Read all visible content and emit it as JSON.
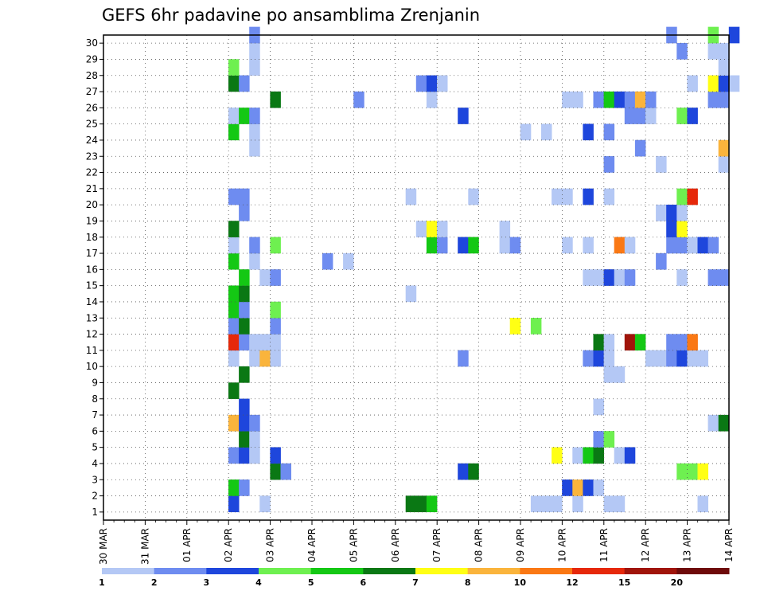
{
  "chart_data": {
    "type": "heatmap",
    "title": "GEFS 6hr padavine po ansamblima Zrenjanin",
    "xlabel": "",
    "ylabel": "",
    "x_tick_labels": [
      "30 MAR",
      "31 MAR",
      "01 APR",
      "02 APR",
      "03 APR",
      "04 APR",
      "05 APR",
      "06 APR",
      "07 APR",
      "08 APR",
      "09 APR",
      "10 APR",
      "11 APR",
      "12 APR",
      "13 APR",
      "14 APR"
    ],
    "y_tick_labels": [
      "1",
      "2",
      "3",
      "4",
      "5",
      "6",
      "7",
      "8",
      "9",
      "10",
      "11",
      "12",
      "13",
      "14",
      "15",
      "16",
      "17",
      "18",
      "19",
      "20",
      "21",
      "22",
      "23",
      "24",
      "25",
      "26",
      "27",
      "28",
      "29",
      "30"
    ],
    "x_range_days": [
      0,
      15
    ],
    "y_range_members": [
      0,
      30
    ],
    "grid": "dotted",
    "time_step_days": 0.25,
    "colorbar": {
      "position": "bottom",
      "tick_labels": [
        "1",
        "2",
        "3",
        "4",
        "5",
        "6",
        "7",
        "8",
        "10",
        "12",
        "15",
        "20"
      ],
      "colors": [
        "#b4c8f5",
        "#6e8cf0",
        "#1e46dc",
        "#6ef050",
        "#14c814",
        "#0a7814",
        "#ffff14",
        "#fab43c",
        "#fa7814",
        "#e6280a",
        "#a0140a",
        "#6e0a0a"
      ]
    },
    "cells": [
      [
        3.0,
        1,
        3
      ],
      [
        3.75,
        1,
        1
      ],
      [
        7.25,
        1,
        6
      ],
      [
        7.5,
        1,
        6
      ],
      [
        7.75,
        1,
        5
      ],
      [
        10.25,
        1,
        1
      ],
      [
        10.5,
        1,
        1
      ],
      [
        10.75,
        1,
        1
      ],
      [
        11.25,
        1,
        1
      ],
      [
        12.0,
        1,
        1
      ],
      [
        12.25,
        1,
        1
      ],
      [
        14.25,
        1,
        1
      ],
      [
        3.0,
        2,
        5
      ],
      [
        3.25,
        2,
        2
      ],
      [
        11.0,
        2,
        3
      ],
      [
        11.25,
        2,
        8
      ],
      [
        11.5,
        2,
        3
      ],
      [
        11.75,
        2,
        1
      ],
      [
        4.0,
        3,
        6
      ],
      [
        4.25,
        3,
        2
      ],
      [
        8.5,
        3,
        3
      ],
      [
        8.75,
        3,
        6
      ],
      [
        13.75,
        3,
        4
      ],
      [
        14.0,
        3,
        4
      ],
      [
        14.25,
        3,
        7
      ],
      [
        3.0,
        4,
        2
      ],
      [
        3.25,
        4,
        3
      ],
      [
        3.5,
        4,
        1
      ],
      [
        4.0,
        4,
        3
      ],
      [
        10.75,
        4,
        7
      ],
      [
        11.25,
        4,
        1
      ],
      [
        11.5,
        4,
        5
      ],
      [
        11.75,
        4,
        6
      ],
      [
        12.25,
        4,
        1
      ],
      [
        12.5,
        4,
        3
      ],
      [
        3.25,
        5,
        6
      ],
      [
        3.5,
        5,
        1
      ],
      [
        11.75,
        5,
        2
      ],
      [
        12.0,
        5,
        4
      ],
      [
        3.0,
        6,
        8
      ],
      [
        3.25,
        6,
        3
      ],
      [
        3.5,
        6,
        2
      ],
      [
        14.5,
        6,
        1
      ],
      [
        14.75,
        6,
        6
      ],
      [
        3.25,
        7,
        3
      ],
      [
        11.75,
        7,
        1
      ],
      [
        3.0,
        8,
        6
      ],
      [
        3.25,
        9,
        6
      ],
      [
        12.0,
        9,
        1
      ],
      [
        12.25,
        9,
        1
      ],
      [
        3.0,
        10,
        1
      ],
      [
        3.5,
        10,
        1
      ],
      [
        3.75,
        10,
        8
      ],
      [
        4.0,
        10,
        1
      ],
      [
        8.5,
        10,
        2
      ],
      [
        11.5,
        10,
        2
      ],
      [
        11.75,
        10,
        3
      ],
      [
        12.0,
        10,
        1
      ],
      [
        13.0,
        10,
        1
      ],
      [
        13.25,
        10,
        1
      ],
      [
        13.5,
        10,
        2
      ],
      [
        13.75,
        10,
        3
      ],
      [
        14.0,
        10,
        1
      ],
      [
        14.25,
        10,
        1
      ],
      [
        3.0,
        11,
        10
      ],
      [
        3.25,
        11,
        2
      ],
      [
        3.5,
        11,
        1
      ],
      [
        3.75,
        11,
        1
      ],
      [
        4.0,
        11,
        1
      ],
      [
        11.75,
        11,
        6
      ],
      [
        12.0,
        11,
        1
      ],
      [
        12.5,
        11,
        11
      ],
      [
        12.75,
        11,
        5
      ],
      [
        13.5,
        11,
        2
      ],
      [
        13.75,
        11,
        2
      ],
      [
        14.0,
        11,
        9
      ],
      [
        3.0,
        12,
        2
      ],
      [
        3.25,
        12,
        6
      ],
      [
        4.0,
        12,
        2
      ],
      [
        9.75,
        12,
        7
      ],
      [
        10.25,
        12,
        4
      ],
      [
        3.0,
        13,
        5
      ],
      [
        3.25,
        13,
        2
      ],
      [
        4.0,
        13,
        4
      ],
      [
        3.0,
        14,
        5
      ],
      [
        3.25,
        14,
        6
      ],
      [
        7.25,
        14,
        1
      ],
      [
        3.25,
        15,
        5
      ],
      [
        3.75,
        15,
        1
      ],
      [
        4.0,
        15,
        2
      ],
      [
        11.5,
        15,
        1
      ],
      [
        11.75,
        15,
        1
      ],
      [
        12.0,
        15,
        1
      ],
      [
        12.0,
        15,
        3
      ],
      [
        12.25,
        15,
        1
      ],
      [
        12.5,
        15,
        2
      ],
      [
        13.75,
        15,
        1
      ],
      [
        14.5,
        15,
        2
      ],
      [
        14.75,
        15,
        2
      ],
      [
        3.0,
        16,
        5
      ],
      [
        3.5,
        16,
        1
      ],
      [
        5.25,
        16,
        2
      ],
      [
        5.75,
        16,
        1
      ],
      [
        13.25,
        16,
        2
      ],
      [
        3.0,
        17,
        1
      ],
      [
        3.5,
        17,
        2
      ],
      [
        4.0,
        17,
        4
      ],
      [
        7.75,
        17,
        5
      ],
      [
        8.0,
        17,
        2
      ],
      [
        8.5,
        17,
        3
      ],
      [
        8.75,
        17,
        5
      ],
      [
        9.5,
        17,
        1
      ],
      [
        9.75,
        17,
        2
      ],
      [
        11.0,
        17,
        1
      ],
      [
        11.5,
        17,
        1
      ],
      [
        12.25,
        17,
        9
      ],
      [
        12.5,
        17,
        1
      ],
      [
        13.5,
        17,
        2
      ],
      [
        13.75,
        17,
        2
      ],
      [
        14.0,
        17,
        1
      ],
      [
        14.25,
        17,
        3
      ],
      [
        14.5,
        17,
        2
      ],
      [
        3.0,
        18,
        6
      ],
      [
        7.5,
        18,
        1
      ],
      [
        7.75,
        18,
        7
      ],
      [
        8.0,
        18,
        1
      ],
      [
        9.5,
        18,
        1
      ],
      [
        13.5,
        18,
        3
      ],
      [
        13.75,
        18,
        7
      ],
      [
        3.25,
        19,
        2
      ],
      [
        13.25,
        19,
        1
      ],
      [
        13.5,
        19,
        3
      ],
      [
        13.75,
        19,
        1
      ],
      [
        3.0,
        20,
        2
      ],
      [
        3.25,
        20,
        2
      ],
      [
        7.25,
        20,
        1
      ],
      [
        8.75,
        20,
        1
      ],
      [
        10.75,
        20,
        1
      ],
      [
        11.0,
        20,
        1
      ],
      [
        11.5,
        20,
        3
      ],
      [
        12.0,
        20,
        1
      ],
      [
        13.75,
        20,
        4
      ],
      [
        14.0,
        20,
        10
      ],
      [
        12.0,
        22,
        2
      ],
      [
        13.25,
        22,
        1
      ],
      [
        14.75,
        22,
        1
      ],
      [
        3.5,
        23,
        1
      ],
      [
        12.75,
        23,
        2
      ],
      [
        14.75,
        23,
        8
      ],
      [
        3.0,
        24,
        5
      ],
      [
        3.5,
        24,
        1
      ],
      [
        10.0,
        24,
        1
      ],
      [
        10.5,
        24,
        1
      ],
      [
        11.5,
        24,
        3
      ],
      [
        12.0,
        24,
        2
      ],
      [
        3.0,
        25,
        1
      ],
      [
        3.25,
        25,
        5
      ],
      [
        3.5,
        25,
        2
      ],
      [
        8.5,
        25,
        3
      ],
      [
        12.5,
        25,
        2
      ],
      [
        12.75,
        25,
        2
      ],
      [
        13.0,
        25,
        1
      ],
      [
        13.75,
        25,
        4
      ],
      [
        14.0,
        25,
        3
      ],
      [
        4.0,
        26,
        6
      ],
      [
        6.0,
        26,
        2
      ],
      [
        7.75,
        26,
        1
      ],
      [
        11.0,
        26,
        1
      ],
      [
        11.25,
        26,
        1
      ],
      [
        11.75,
        26,
        2
      ],
      [
        12.0,
        26,
        5
      ],
      [
        12.25,
        26,
        3
      ],
      [
        12.5,
        26,
        2
      ],
      [
        12.75,
        26,
        8
      ],
      [
        13.0,
        26,
        2
      ],
      [
        14.5,
        26,
        2
      ],
      [
        14.75,
        26,
        2
      ],
      [
        3.0,
        27,
        6
      ],
      [
        3.25,
        27,
        2
      ],
      [
        7.5,
        27,
        2
      ],
      [
        7.75,
        27,
        3
      ],
      [
        8.0,
        27,
        1
      ],
      [
        14.0,
        27,
        1
      ],
      [
        14.5,
        27,
        7
      ],
      [
        14.75,
        27,
        3
      ],
      [
        15.0,
        27,
        1
      ],
      [
        3.0,
        28,
        4
      ],
      [
        3.5,
        28,
        1
      ],
      [
        14.75,
        28,
        1
      ],
      [
        3.5,
        29,
        1
      ],
      [
        13.75,
        29,
        2
      ],
      [
        14.5,
        29,
        1
      ],
      [
        14.75,
        29,
        1
      ],
      [
        3.5,
        30,
        2
      ],
      [
        13.5,
        30,
        2
      ],
      [
        14.5,
        30,
        4
      ],
      [
        15.0,
        30,
        3
      ]
    ]
  }
}
